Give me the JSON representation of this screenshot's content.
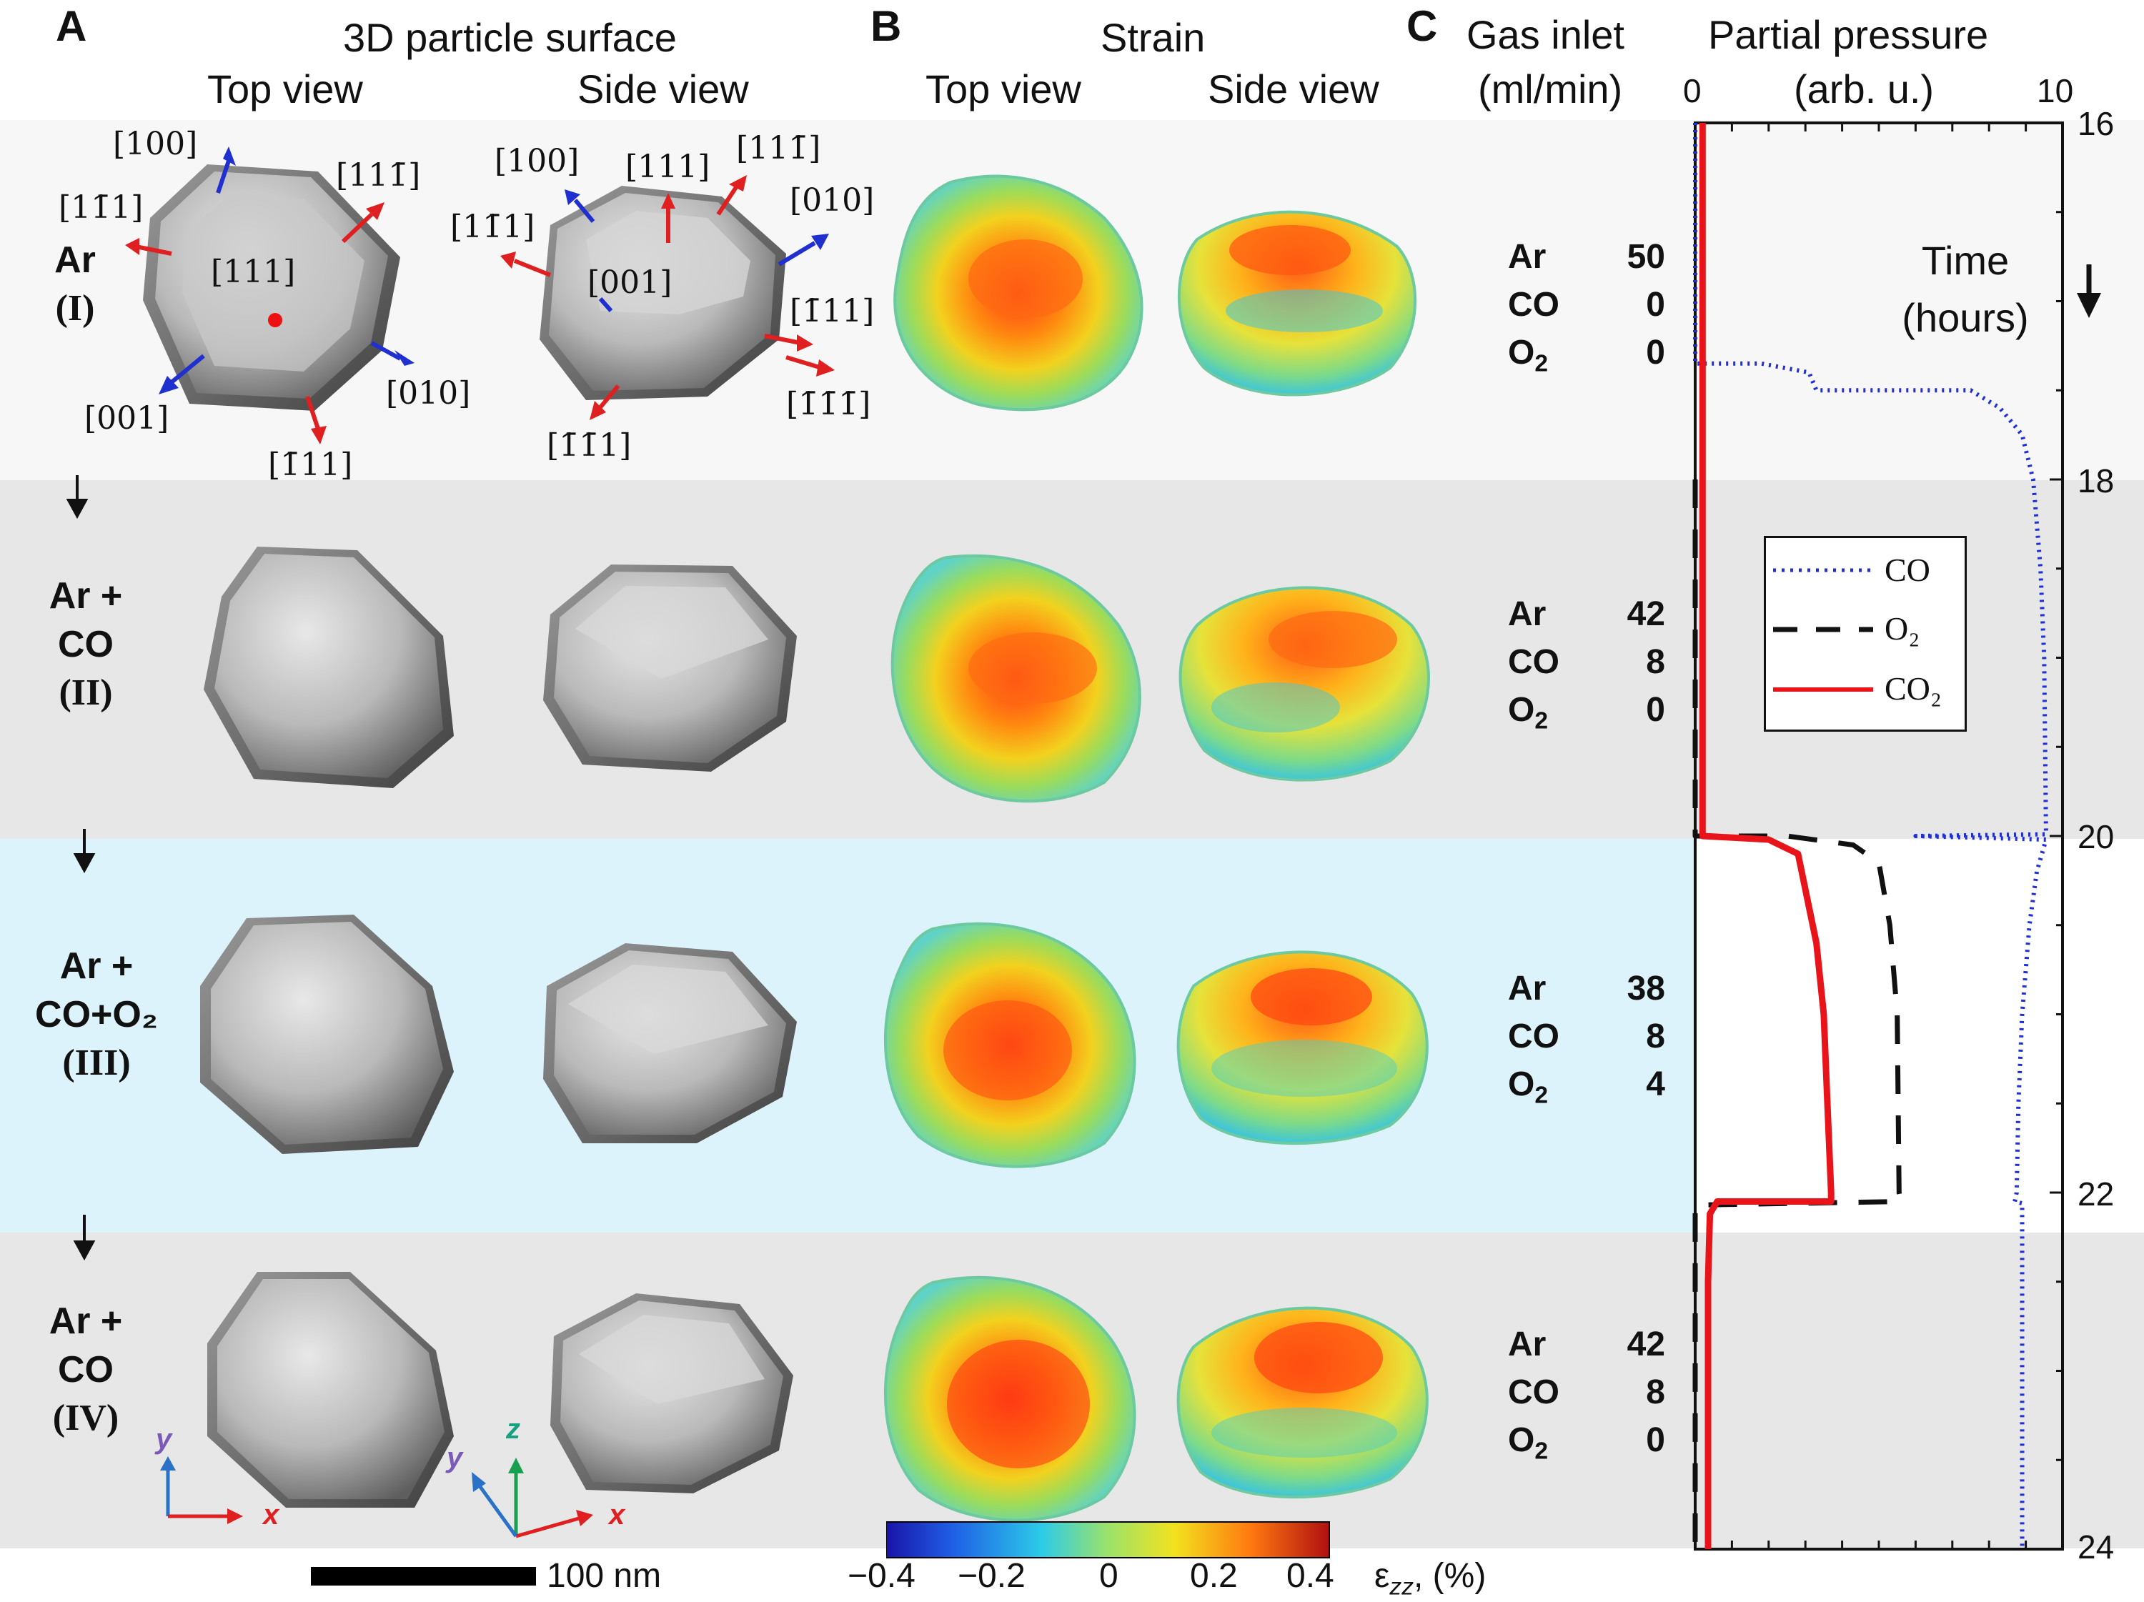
{
  "panels": {
    "a": {
      "letter": "A",
      "title": "3D particle surface",
      "top_view": "Top view",
      "side_view": "Side view",
      "miller_top": [
        "[100]",
        "[1̅1̅⁠1]",
        "[11̅1̅]",
        "[111]",
        "[001]",
        "[010]",
        "[1̅⁠11]"
      ],
      "miller_top_labels": [
        "[100]",
        "[11̄1]",
        "[111̄]",
        "[111]",
        "[001]",
        "[010]",
        "[1̄11]"
      ],
      "miller_side_labels": [
        "[100]",
        "[111]",
        "[111̄]",
        "[11̄1]",
        "[010]",
        "[001]",
        "[1̄11]",
        "[1̄1̄1̄]",
        "[1̄1̄1]"
      ],
      "scale_bar": "100 nm",
      "axes_top": {
        "x": "x",
        "y": "y"
      },
      "axes_side": {
        "x": "x",
        "y": "y",
        "z": "z"
      }
    },
    "b": {
      "letter": "B",
      "title": "Strain",
      "top_view": "Top view",
      "side_view": "Side view",
      "colorbar_ticks": [
        "−0.4",
        "−0.2",
        "0",
        "0.2",
        "0.4"
      ],
      "colorbar_label_main": "ε",
      "colorbar_label_sub": "zz",
      "colorbar_label_rest": ", (%)"
    },
    "c": {
      "letter": "C",
      "gas_title_1": "Gas inlet",
      "gas_title_2": "(ml/min)",
      "pp_title_1": "Partial pressure",
      "pp_title_2": "(arb. u.)"
    }
  },
  "stages": [
    {
      "name_1": "Ar",
      "name_2": "",
      "roman": "(I)",
      "ar": "50",
      "co": "0",
      "o2": "0",
      "color": "#f7f7f7"
    },
    {
      "name_1": "Ar +",
      "name_2": "CO",
      "roman": "(II)",
      "ar": "42",
      "co": "8",
      "o2": "0",
      "color": "#e6e7e6"
    },
    {
      "name_1": "Ar +",
      "name_2": "CO+O₂",
      "roman": "(III)",
      "ar": "38",
      "co": "8",
      "o2": "4",
      "color": "#ddf3fb"
    },
    {
      "name_1": "Ar +",
      "name_2": "CO",
      "roman": "(IV)",
      "ar": "42",
      "co": "8",
      "o2": "0",
      "color": "#e6e7e6"
    }
  ],
  "gas_labels": {
    "ar": "Ar",
    "co": "CO",
    "o2_main": "O",
    "o2_sub": "2"
  },
  "chart_data": {
    "type": "line",
    "orientation": "vertical-time",
    "xlabel": "Partial pressure (arb. u.)",
    "ylabel": "Time (hours)",
    "xlim": [
      0,
      10
    ],
    "ylim": [
      16,
      24
    ],
    "x_ticks": [
      "0",
      "10"
    ],
    "y_ticks": [
      "16",
      "18",
      "20",
      "22",
      "24"
    ],
    "time_label_1": "Time",
    "time_label_2": "(hours)",
    "legend": {
      "position": "right-middle",
      "entries": [
        "CO",
        "O₂",
        "CO₂"
      ]
    },
    "series": [
      {
        "name": "CO",
        "color": "#1f2fd6",
        "style": "dotted",
        "points": [
          [
            0.0,
            16.0
          ],
          [
            0.0,
            17.1
          ],
          [
            0.0,
            17.35
          ],
          [
            1.8,
            17.35
          ],
          [
            3.1,
            17.4
          ],
          [
            3.3,
            17.5
          ],
          [
            7.5,
            17.5
          ],
          [
            8.3,
            17.6
          ],
          [
            8.9,
            17.75
          ],
          [
            9.2,
            18.0
          ],
          [
            9.4,
            18.5
          ],
          [
            9.5,
            19.0
          ],
          [
            9.55,
            19.99
          ],
          [
            6.0,
            20.0
          ],
          [
            9.55,
            20.02
          ],
          [
            9.3,
            20.2
          ],
          [
            9.1,
            20.5
          ],
          [
            8.9,
            21.0
          ],
          [
            8.8,
            21.5
          ],
          [
            8.75,
            22.0
          ],
          [
            8.7,
            22.05
          ],
          [
            8.9,
            22.06
          ],
          [
            8.9,
            23.0
          ],
          [
            8.9,
            24.0
          ]
        ]
      },
      {
        "name": "O₂",
        "color": "#111111",
        "style": "dashed",
        "points": [
          [
            0.0,
            18.0
          ],
          [
            0.0,
            20.0
          ],
          [
            2.5,
            20.0
          ],
          [
            4.3,
            20.05
          ],
          [
            5.0,
            20.15
          ],
          [
            5.3,
            20.5
          ],
          [
            5.5,
            21.0
          ],
          [
            5.55,
            22.0
          ],
          [
            5.6,
            22.05
          ],
          [
            0.0,
            22.07
          ],
          [
            0.0,
            24.0
          ]
        ]
      },
      {
        "name": "CO₂",
        "color": "#e8141a",
        "style": "solid",
        "points": [
          [
            0.2,
            16.0
          ],
          [
            0.2,
            20.0
          ],
          [
            2.0,
            20.02
          ],
          [
            2.8,
            20.1
          ],
          [
            3.0,
            20.3
          ],
          [
            3.3,
            20.6
          ],
          [
            3.5,
            21.0
          ],
          [
            3.6,
            21.5
          ],
          [
            3.7,
            22.0
          ],
          [
            3.7,
            22.05
          ],
          [
            0.6,
            22.05
          ],
          [
            0.4,
            22.12
          ],
          [
            0.35,
            22.5
          ],
          [
            0.35,
            24.0
          ]
        ]
      }
    ]
  }
}
